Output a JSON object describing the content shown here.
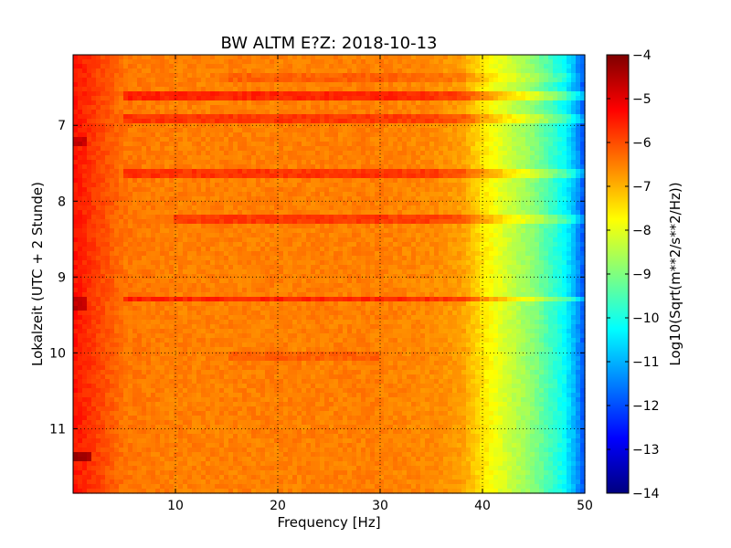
{
  "chart_data": {
    "type": "heatmap",
    "title": "BW ALTM E?Z: 2018-10-13",
    "xlabel": "Frequency [Hz]",
    "ylabel": "Lokalzeit (UTC + 2 Stunde)",
    "xlim": [
      0,
      50
    ],
    "ylim": [
      11.85,
      6.07
    ],
    "y_inverted": true,
    "x_ticks": [
      10,
      20,
      30,
      40,
      50
    ],
    "y_ticks": [
      7,
      8,
      9,
      10,
      11
    ],
    "grid": true,
    "colorbar": {
      "label": "Log10(Sqrt(m**2/s**2/Hz))",
      "range": [
        -14,
        -4
      ],
      "ticks": [
        -4,
        -5,
        -6,
        -7,
        -8,
        -9,
        -10,
        -11,
        -12,
        -13,
        -14
      ],
      "colormap": "jet"
    },
    "spectrum_profile": {
      "frequencies_hz": [
        0,
        1,
        2,
        3,
        4,
        5,
        10,
        20,
        30,
        35,
        38,
        40,
        42,
        45,
        48,
        49,
        50
      ],
      "levels": [
        -5.4,
        -5.6,
        -5.8,
        -6.0,
        -6.2,
        -6.4,
        -6.5,
        -6.5,
        -6.5,
        -6.6,
        -6.8,
        -7.5,
        -8.1,
        -8.9,
        -10.2,
        -11.0,
        -12.0
      ]
    },
    "horizontal_bands": [
      {
        "time": 6.6,
        "offset": 0.9,
        "f_from": 5,
        "f_to": 50
      },
      {
        "time": 6.92,
        "offset": 0.7,
        "f_from": 5,
        "f_to": 50
      },
      {
        "time": 7.62,
        "offset": 0.75,
        "f_from": 5,
        "f_to": 50
      },
      {
        "time": 8.25,
        "offset": 0.7,
        "f_from": 10,
        "f_to": 50
      },
      {
        "time": 9.28,
        "offset": 0.9,
        "f_from": 5,
        "f_to": 50
      },
      {
        "time": 10.03,
        "offset": 0.3,
        "f_from": 15,
        "f_to": 30
      },
      {
        "time": 6.38,
        "offset": 0.3,
        "f_from": 15,
        "f_to": 50
      }
    ],
    "low_freq_events": [
      {
        "time": 7.2,
        "offset": 0.8,
        "f_to": 1.2
      },
      {
        "time": 9.35,
        "offset": 0.8,
        "f_to": 1.5
      },
      {
        "time": 11.38,
        "offset": 1.2,
        "f_to": 1.6
      }
    ],
    "colors": {
      "jet": [
        "#00007f",
        "#0000ff",
        "#007fff",
        "#00ffff",
        "#7fff7f",
        "#ffff00",
        "#ff7f00",
        "#ff0000",
        "#7f0000"
      ]
    }
  }
}
